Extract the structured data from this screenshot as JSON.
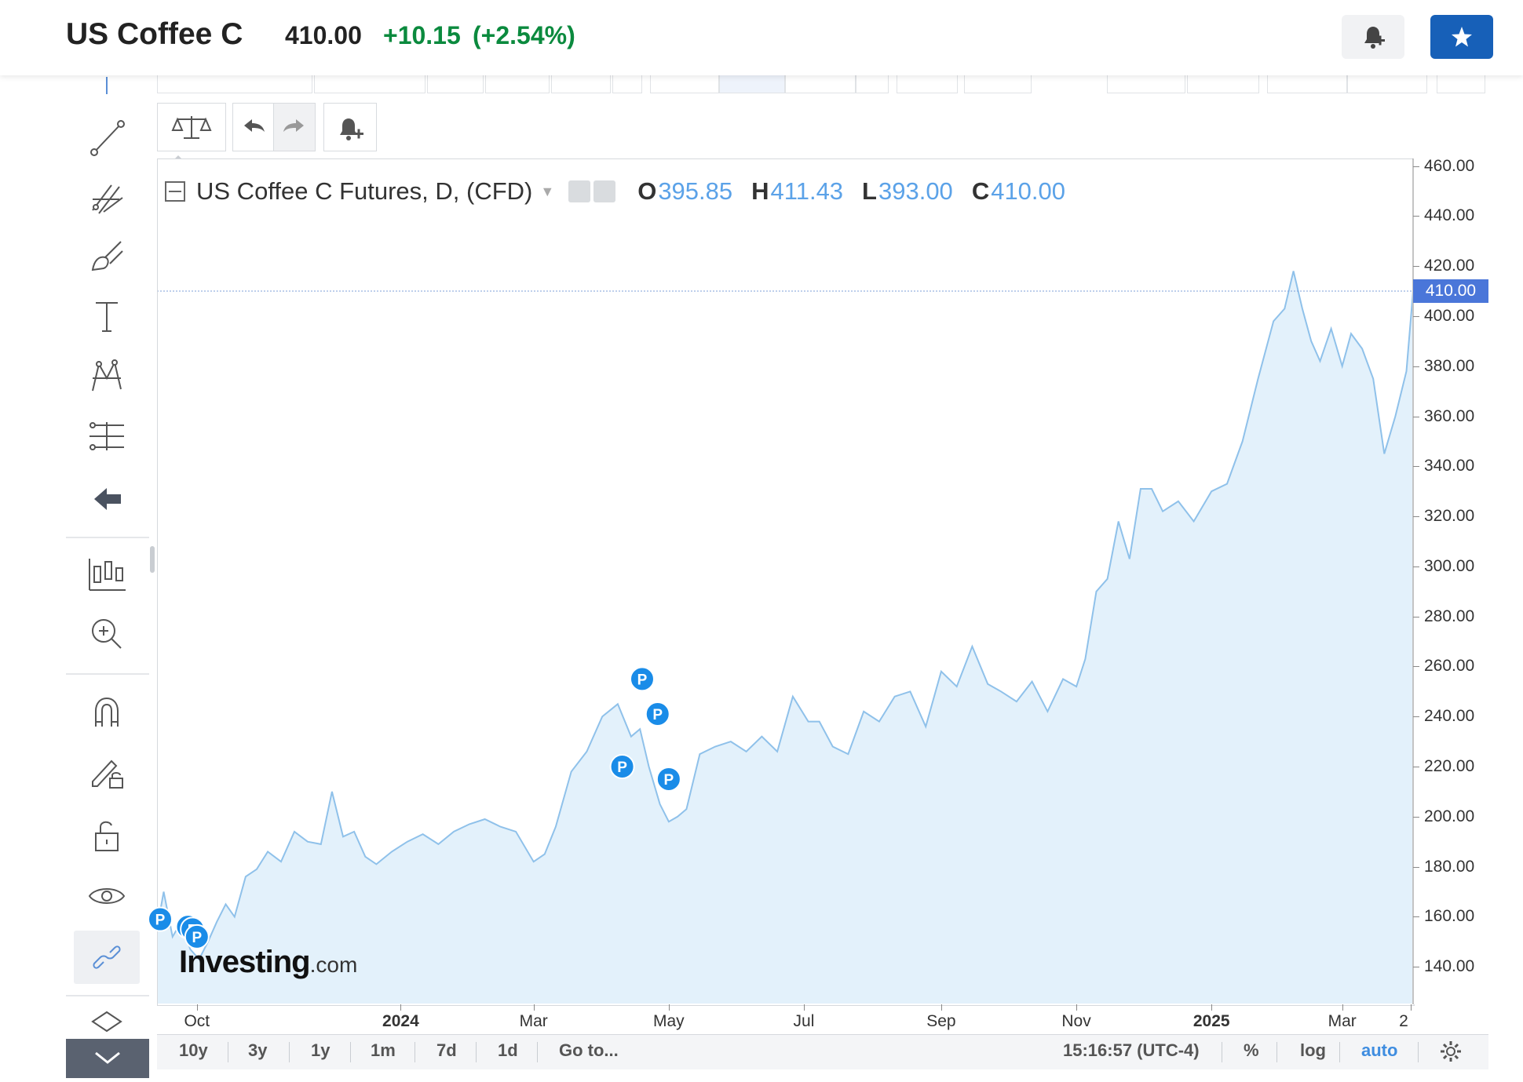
{
  "header": {
    "title": "US Coffee C",
    "price": "410.00",
    "change": "+10.15",
    "change_pct": "(+2.54%)",
    "alert_icon": "bell-plus-icon",
    "watchlist_icon": "star-icon",
    "watchlist_color": "#1760b8",
    "positive_color": "#0b8a3e"
  },
  "legend": {
    "symbol": "US Coffee C Futures, D, (CFD)",
    "open_label": "O",
    "open": "395.85",
    "high_label": "H",
    "high": "411.43",
    "low_label": "L",
    "low": "393.00",
    "close_label": "C",
    "close": "410.00",
    "value_color": "#5ba2e8"
  },
  "left_toolbar": [
    "crosshair-icon",
    "trend-line-icon",
    "fib-icon",
    "brush-icon",
    "text-icon",
    "pattern-icon",
    "measure-icon",
    "back-arrow-icon",
    "indicators-icon",
    "zoom-in-icon",
    "magnet-icon",
    "lock-draw-icon",
    "unlock-icon",
    "eye-icon",
    "link-icon",
    "layers-icon"
  ],
  "top_toolbar": [
    "scales-icon",
    "undo-icon",
    "redo-icon",
    "add-alert-icon"
  ],
  "current_price_label": "410.00",
  "bottom_bar": {
    "ranges": [
      "10y",
      "3y",
      "1y",
      "1m",
      "7d",
      "1d",
      "Go to..."
    ],
    "time": "15:16:57 (UTC-4)",
    "percent": "%",
    "log": "log",
    "auto": "auto",
    "settings_icon": "gear-icon"
  },
  "watermark": {
    "brand": "Investing",
    "suffix": ".com"
  },
  "chart_data": {
    "type": "area",
    "title": "US Coffee C Futures, D, (CFD)",
    "y_axis_side": "right",
    "ylim": [
      125,
      463
    ],
    "yticks": [
      "460.00",
      "440.00",
      "420.00",
      "400.00",
      "380.00",
      "360.00",
      "340.00",
      "320.00",
      "300.00",
      "280.00",
      "260.00",
      "240.00",
      "220.00",
      "200.00",
      "180.00",
      "160.00",
      "140.00"
    ],
    "ytick_values": [
      460,
      440,
      420,
      400,
      380,
      360,
      340,
      320,
      300,
      280,
      260,
      240,
      220,
      200,
      180,
      160,
      140
    ],
    "x_domain": [
      "2023-09-13",
      "2025-04-02"
    ],
    "xticks": [
      {
        "label": "Oct",
        "date": "2023-10-01",
        "bold": false
      },
      {
        "label": "2024",
        "date": "2024-01-01",
        "bold": true
      },
      {
        "label": "Mar",
        "date": "2024-03-01",
        "bold": false
      },
      {
        "label": "May",
        "date": "2024-05-01",
        "bold": false
      },
      {
        "label": "Jul",
        "date": "2024-07-01",
        "bold": false
      },
      {
        "label": "Sep",
        "date": "2024-09-01",
        "bold": false
      },
      {
        "label": "Nov",
        "date": "2024-11-01",
        "bold": false
      },
      {
        "label": "2025",
        "date": "2025-01-01",
        "bold": true
      },
      {
        "label": "Mar",
        "date": "2025-03-01",
        "bold": false
      },
      {
        "label": "2",
        "date": "2025-04-01",
        "bold": false
      }
    ],
    "line_color": "#8fc1ea",
    "fill_color": "#e3f1fb",
    "current_price_line": 410.0,
    "series": [
      {
        "dates": [
          "2023-09-13",
          "2023-09-16",
          "2023-09-20",
          "2023-09-24",
          "2023-09-28",
          "2023-10-02",
          "2023-10-06",
          "2023-10-10",
          "2023-10-14",
          "2023-10-18",
          "2023-10-23",
          "2023-10-28",
          "2023-11-02",
          "2023-11-08",
          "2023-11-14",
          "2023-11-20",
          "2023-11-26",
          "2023-12-01",
          "2023-12-06",
          "2023-12-11",
          "2023-12-16",
          "2023-12-21",
          "2023-12-28",
          "2024-01-04",
          "2024-01-11",
          "2024-01-18",
          "2024-01-25",
          "2024-02-01",
          "2024-02-08",
          "2024-02-15",
          "2024-02-22",
          "2024-03-01",
          "2024-03-06",
          "2024-03-11",
          "2024-03-18",
          "2024-03-25",
          "2024-04-01",
          "2024-04-08",
          "2024-04-14",
          "2024-04-18",
          "2024-04-22",
          "2024-04-27",
          "2024-05-01",
          "2024-05-05",
          "2024-05-09",
          "2024-05-15",
          "2024-05-22",
          "2024-05-29",
          "2024-06-05",
          "2024-06-12",
          "2024-06-19",
          "2024-06-26",
          "2024-07-03",
          "2024-07-08",
          "2024-07-14",
          "2024-07-21",
          "2024-07-28",
          "2024-08-04",
          "2024-08-11",
          "2024-08-18",
          "2024-08-25",
          "2024-09-01",
          "2024-09-08",
          "2024-09-15",
          "2024-09-22",
          "2024-09-28",
          "2024-10-05",
          "2024-10-12",
          "2024-10-19",
          "2024-10-26",
          "2024-11-01",
          "2024-11-05",
          "2024-11-10",
          "2024-11-15",
          "2024-11-20",
          "2024-11-25",
          "2024-11-30",
          "2024-12-05",
          "2024-12-10",
          "2024-12-17",
          "2024-12-24",
          "2025-01-01",
          "2025-01-08",
          "2025-01-15",
          "2025-01-22",
          "2025-01-29",
          "2025-02-03",
          "2025-02-07",
          "2025-02-11",
          "2025-02-15",
          "2025-02-19",
          "2025-02-24",
          "2025-03-01",
          "2025-03-05",
          "2025-03-10",
          "2025-03-15",
          "2025-03-20",
          "2025-03-25",
          "2025-03-30",
          "2025-04-02"
        ],
        "values": [
          155,
          170,
          152,
          158,
          147,
          143,
          150,
          158,
          165,
          160,
          176,
          179,
          186,
          182,
          194,
          190,
          189,
          210,
          192,
          194,
          184,
          181,
          186,
          190,
          193,
          189,
          194,
          197,
          199,
          196,
          194,
          182,
          185,
          196,
          218,
          226,
          240,
          245,
          232,
          235,
          220,
          205,
          198,
          200,
          203,
          225,
          228,
          230,
          226,
          232,
          226,
          248,
          238,
          238,
          228,
          225,
          242,
          238,
          248,
          250,
          236,
          258,
          252,
          268,
          253,
          250,
          246,
          254,
          242,
          255,
          252,
          263,
          290,
          295,
          318,
          303,
          331,
          331,
          322,
          326,
          318,
          330,
          333,
          350,
          375,
          398,
          403,
          418,
          403,
          390,
          382,
          395,
          380,
          393,
          387,
          375,
          345,
          360,
          378,
          410
        ]
      }
    ],
    "markers": [
      {
        "label": "P",
        "date": "2023-09-13",
        "value": 159
      },
      {
        "label": "P",
        "date": "2023-09-27",
        "value": 156
      },
      {
        "label": "P",
        "date": "2023-09-29",
        "value": 155
      },
      {
        "label": "P",
        "date": "2023-10-01",
        "value": 152
      },
      {
        "label": "P",
        "date": "2024-04-10",
        "value": 220
      },
      {
        "label": "P",
        "date": "2024-04-19",
        "value": 255
      },
      {
        "label": "P",
        "date": "2024-04-26",
        "value": 241
      },
      {
        "label": "P",
        "date": "2024-05-01",
        "value": 215
      }
    ]
  }
}
